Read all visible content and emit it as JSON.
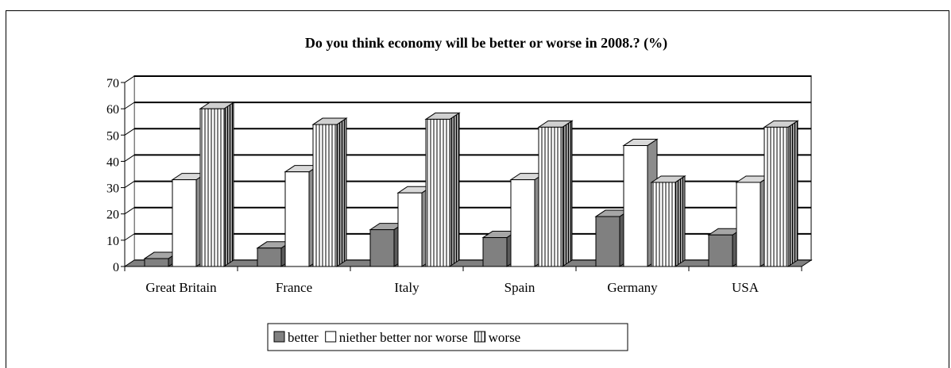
{
  "chart_data": {
    "type": "bar",
    "title": "Do you think economy will be better or worse in 2008.? (%)",
    "xlabel": "",
    "ylabel": "",
    "categories": [
      "Great Britain",
      "France",
      "Italy",
      "Spain",
      "Germany",
      "USA"
    ],
    "series": [
      {
        "name": "better",
        "values": [
          3,
          7,
          14,
          11,
          19,
          12
        ]
      },
      {
        "name": "niether better nor worse",
        "values": [
          33,
          36,
          28,
          33,
          46,
          32
        ]
      },
      {
        "name": "worse",
        "values": [
          60,
          54,
          56,
          53,
          32,
          53
        ]
      }
    ],
    "ylim": [
      0,
      70
    ],
    "yticks": [
      "0",
      "10",
      "20",
      "30",
      "40",
      "50",
      "60",
      "70"
    ],
    "grid": true,
    "legend": "bottom",
    "three_d": true,
    "colors": {
      "better": "#808080",
      "niether better nor worse": "#ffffff",
      "worse": "#ffffff",
      "outline": "#000000",
      "wall": "#ffffff",
      "floor": "#808080"
    },
    "patterns": {
      "better": "solid",
      "niether better nor worse": "solid",
      "worse": "vertical-stripes"
    }
  }
}
